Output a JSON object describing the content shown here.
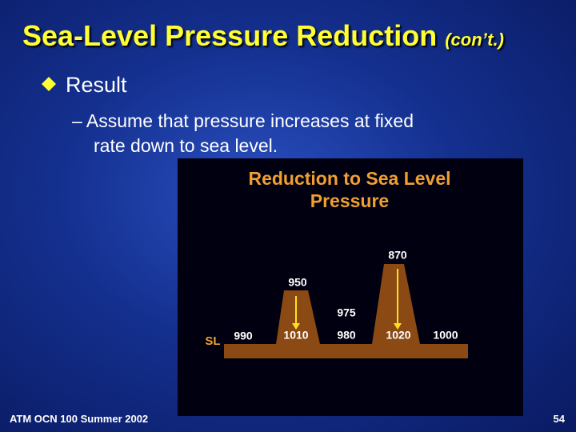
{
  "header": {
    "title": "Sea-Level Pressure Reduction",
    "subtitle": "(con’t.)"
  },
  "bullets": {
    "main": "Result",
    "sub_line1": "– Assume that pressure increases at fixed",
    "sub_line2": "rate down to sea level."
  },
  "figure": {
    "title_line1": "Reduction to Sea Level",
    "title_line2": "Pressure",
    "sea_level_label": "SL",
    "peak_labels": [
      "950",
      "975",
      "870"
    ],
    "sea_level_values": [
      "990",
      "1010",
      "980",
      "1020",
      "1000"
    ]
  },
  "footer": {
    "course": "ATM OCN 100 Summer 2002",
    "page": "54"
  }
}
